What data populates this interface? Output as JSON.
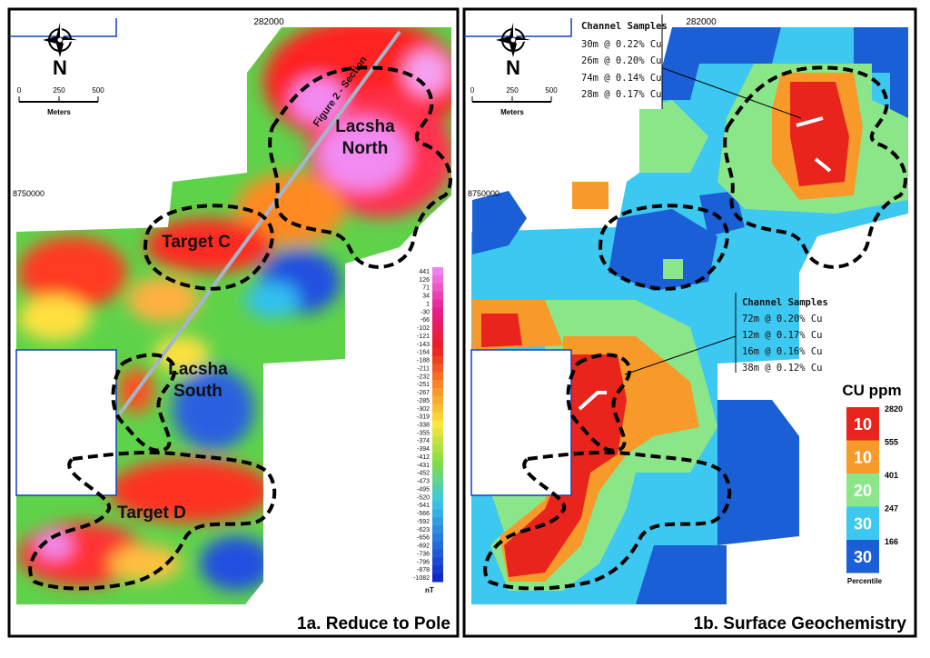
{
  "panel_a": {
    "title": "1a. Reduce to Pole",
    "easting": "282000",
    "northing": "8750000",
    "north": "N",
    "scale": [
      "0",
      "250",
      "500"
    ],
    "scale_unit": "Meters",
    "section_label": "Figure 2 - Section",
    "lacsha_north": [
      "Lacsha",
      "North"
    ],
    "target_c": "Target C",
    "lacsha_south": [
      "Lacsha",
      "South"
    ],
    "target_d": "Target D",
    "colorbar_labels": [
      "441",
      "126",
      "71",
      "34",
      "1",
      "-30",
      "-66",
      "-102",
      "-121",
      "-143",
      "-164",
      "-188",
      "-211",
      "-232",
      "-251",
      "-267",
      "-285",
      "-302",
      "-319",
      "-338",
      "-355",
      "-374",
      "-394",
      "-412",
      "-431",
      "-452",
      "-473",
      "-495",
      "-520",
      "-541",
      "-566",
      "-592",
      "-623",
      "-656",
      "-692",
      "-736",
      "-796",
      "-878",
      "-1082"
    ],
    "colorbar_unit": "nT"
  },
  "panel_b": {
    "title": "1b. Surface Geochemistry",
    "easting": "282000",
    "northing": "8750000",
    "north": "N",
    "scale": [
      "0",
      "250",
      "500"
    ],
    "scale_unit": "Meters",
    "channel_north": {
      "heading": "Channel Samples",
      "lines": [
        "30m @ 0.22% Cu",
        "26m @ 0.20% Cu",
        "74m @ 0.14% Cu",
        "28m @ 0.17% Cu"
      ]
    },
    "channel_south": {
      "heading": "Channel Samples",
      "lines": [
        "72m @ 0.20% Cu",
        "12m @ 0.17% Cu",
        "16m @ 0.16% Cu",
        "38m @ 0.12% Cu"
      ]
    },
    "legend": {
      "title": "CU ppm",
      "percentiles": [
        "10",
        "10",
        "20",
        "30",
        "30"
      ],
      "thresholds": [
        "2820",
        "555",
        "401",
        "247",
        "166"
      ],
      "caption": "Percentile"
    }
  }
}
